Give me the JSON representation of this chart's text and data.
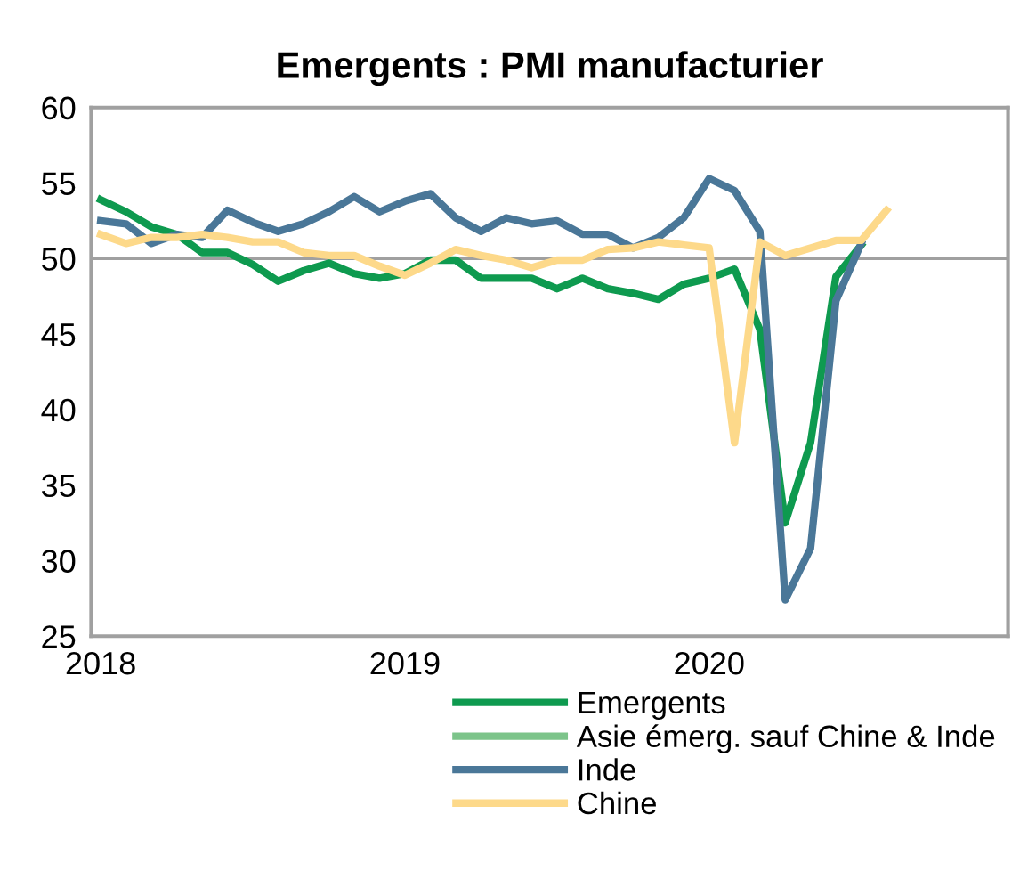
{
  "chart_data": {
    "type": "line",
    "title": "Emergents : PMI manufacturier",
    "x": [
      "2018-01",
      "2018-02",
      "2018-03",
      "2018-04",
      "2018-05",
      "2018-06",
      "2018-07",
      "2018-08",
      "2018-09",
      "2018-10",
      "2018-11",
      "2018-12",
      "2019-01",
      "2019-02",
      "2019-03",
      "2019-04",
      "2019-05",
      "2019-06",
      "2019-07",
      "2019-08",
      "2019-09",
      "2019-10",
      "2019-11",
      "2019-12",
      "2020-01",
      "2020-02",
      "2020-03",
      "2020-04",
      "2020-05",
      "2020-06",
      "2020-07",
      "2020-08"
    ],
    "series": [
      {
        "name": "Emergents",
        "color": "#0e9a4f",
        "values": [
          53.9,
          53.1,
          52.1,
          51.6,
          50.4,
          50.4,
          49.6,
          48.5,
          49.2,
          49.7,
          49.0,
          48.7,
          49.0,
          49.9,
          49.9,
          48.7,
          48.7,
          48.7,
          48.0,
          48.7,
          48.0,
          47.7,
          47.3,
          48.3,
          48.7,
          49.3,
          45.3,
          32.5,
          37.8,
          48.8,
          50.9,
          null
        ]
      },
      {
        "name": "Asie émerg. sauf Chine & Inde",
        "color": "#7cc48a",
        "values": [
          null,
          null,
          null,
          null,
          null,
          null,
          null,
          null,
          null,
          null,
          null,
          null,
          null,
          null,
          null,
          null,
          null,
          null,
          null,
          null,
          null,
          null,
          null,
          null,
          null,
          null,
          null,
          null,
          null,
          null,
          null,
          null
        ]
      },
      {
        "name": "Inde",
        "color": "#4a7798",
        "values": [
          52.5,
          52.3,
          51.0,
          51.6,
          51.4,
          53.2,
          52.4,
          51.8,
          52.3,
          53.1,
          54.1,
          53.1,
          53.8,
          54.3,
          52.7,
          51.8,
          52.7,
          52.3,
          52.5,
          51.6,
          51.6,
          50.7,
          51.4,
          52.7,
          55.3,
          54.5,
          51.8,
          27.4,
          30.8,
          47.2,
          51.0,
          null
        ]
      },
      {
        "name": "Chine",
        "color": "#fdd98a",
        "values": [
          51.6,
          51.0,
          51.4,
          51.4,
          51.6,
          51.4,
          51.1,
          51.1,
          50.4,
          50.2,
          50.2,
          49.5,
          48.9,
          49.7,
          50.6,
          50.2,
          49.9,
          49.4,
          49.9,
          49.9,
          50.6,
          50.7,
          51.1,
          50.9,
          50.7,
          37.8,
          51.1,
          50.2,
          50.7,
          51.2,
          51.2,
          53.2
        ]
      }
    ],
    "xlim": [
      "2017-12-20",
      "2020-12-25"
    ],
    "xticks": [
      {
        "value": "2018-01",
        "label": "2018"
      },
      {
        "value": "2019-01",
        "label": "2019"
      },
      {
        "value": "2020-01",
        "label": "2020"
      }
    ],
    "ylim": [
      25,
      60
    ],
    "yticks": [
      25,
      30,
      35,
      40,
      45,
      50,
      55,
      60
    ],
    "ref_lines": [
      {
        "axis": "y",
        "value": 50,
        "color": "#a0a0a0"
      }
    ],
    "line_style": "solid",
    "legend": "bottom right"
  }
}
